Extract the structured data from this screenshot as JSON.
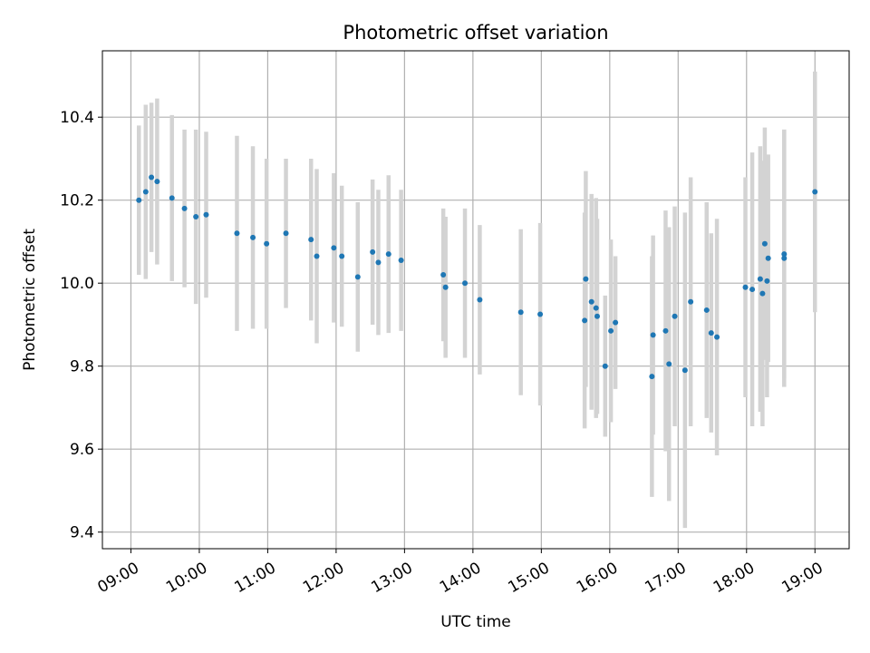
{
  "chart_data": {
    "type": "scatter",
    "title": "Photometric offset variation",
    "xlabel": "UTC time",
    "ylabel": "Photometric offset",
    "xlim": [
      "08:35",
      "19:30"
    ],
    "ylim": [
      9.36,
      10.56
    ],
    "grid": true,
    "x_ticks": [
      "09:00",
      "10:00",
      "11:00",
      "12:00",
      "13:00",
      "14:00",
      "15:00",
      "16:00",
      "17:00",
      "18:00",
      "19:00"
    ],
    "y_ticks": [
      "9.4",
      "9.6",
      "9.8",
      "10.0",
      "10.2",
      "10.4"
    ],
    "colors": {
      "marker": "#1f77b4",
      "errorbar": "#d3d3d3",
      "grid": "#b0b0b0"
    },
    "series": [
      {
        "x": [
          "09:07",
          "09:13",
          "09:18",
          "09:23",
          "09:36",
          "09:47",
          "09:57",
          "10:06",
          "10:33",
          "10:47",
          "10:59",
          "11:16",
          "11:38",
          "11:43",
          "11:58",
          "12:05",
          "12:19",
          "12:32",
          "12:37",
          "12:46",
          "12:57",
          "13:34",
          "13:36",
          "13:53",
          "14:06",
          "14:42",
          "14:59",
          "15:38",
          "15:39",
          "15:44",
          "15:48",
          "15:49",
          "15:56",
          "16:01",
          "16:05",
          "16:37",
          "16:38",
          "16:49",
          "16:52",
          "16:57",
          "17:06",
          "17:11",
          "17:25",
          "17:29",
          "17:34",
          "17:59",
          "18:05",
          "18:12",
          "18:14",
          "18:16",
          "18:18",
          "18:19",
          "18:33",
          "18:33",
          "19:00"
        ],
        "y": [
          10.2,
          10.22,
          10.255,
          10.245,
          10.205,
          10.18,
          10.16,
          10.165,
          10.12,
          10.11,
          10.095,
          10.12,
          10.105,
          10.065,
          10.085,
          10.065,
          10.015,
          10.075,
          10.05,
          10.07,
          10.055,
          10.02,
          9.99,
          10.0,
          9.96,
          9.93,
          9.925,
          9.91,
          10.01,
          9.955,
          9.94,
          9.92,
          9.8,
          9.885,
          9.905,
          9.775,
          9.875,
          9.885,
          9.805,
          9.92,
          9.79,
          9.955,
          9.935,
          9.88,
          9.87,
          9.99,
          9.985,
          10.01,
          9.975,
          10.095,
          10.005,
          10.06,
          10.07,
          10.06,
          10.22
        ],
        "err": [
          0.18,
          0.21,
          0.18,
          0.2,
          0.2,
          0.19,
          0.21,
          0.2,
          0.235,
          0.22,
          0.205,
          0.18,
          0.195,
          0.21,
          0.18,
          0.17,
          0.18,
          0.175,
          0.175,
          0.19,
          0.17,
          0.16,
          0.17,
          0.18,
          0.18,
          0.2,
          0.22,
          0.26,
          0.26,
          0.26,
          0.265,
          0.235,
          0.17,
          0.22,
          0.16,
          0.29,
          0.24,
          0.29,
          0.33,
          0.265,
          0.38,
          0.3,
          0.26,
          0.24,
          0.285,
          0.265,
          0.33,
          0.32,
          0.32,
          0.28,
          0.28,
          0.25,
          0.3,
          0.31,
          0.29
        ]
      }
    ]
  }
}
